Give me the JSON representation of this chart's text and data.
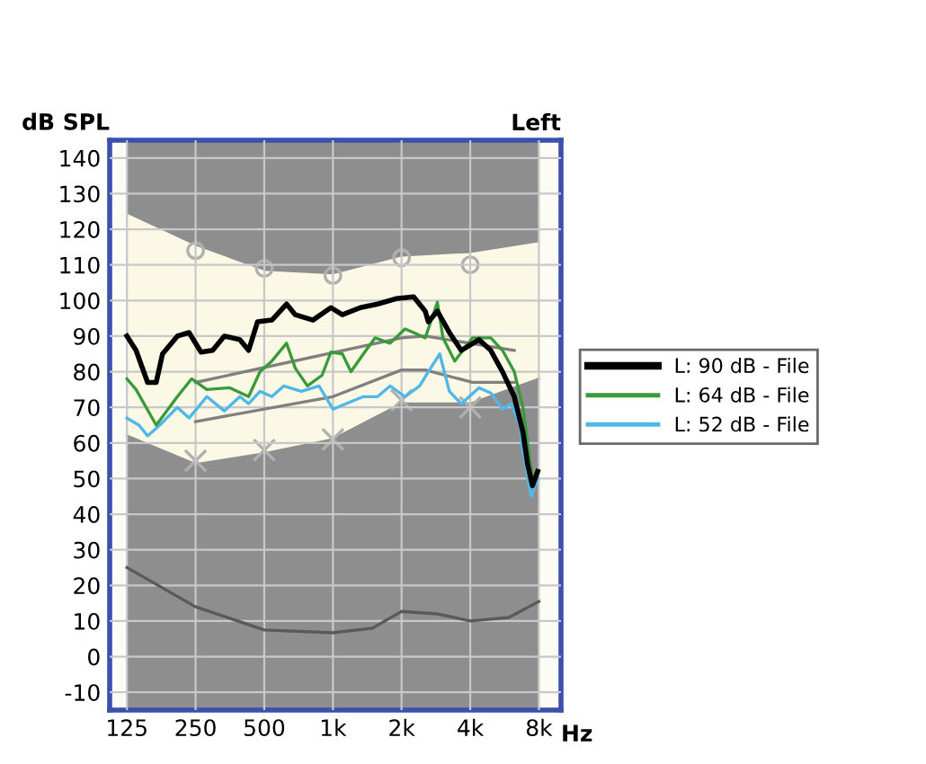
{
  "chart_data": {
    "type": "line",
    "title": "Left",
    "ylabel": "dB SPL",
    "xlabel": "Hz",
    "log": "x",
    "xlim": [
      105,
      10000
    ],
    "xticks": [
      {
        "value": 125,
        "label": "125"
      },
      {
        "value": 250,
        "label": "250"
      },
      {
        "value": 500,
        "label": "500"
      },
      {
        "value": 1000,
        "label": "1k"
      },
      {
        "value": 2000,
        "label": "2k"
      },
      {
        "value": 4000,
        "label": "4k"
      },
      {
        "value": 8000,
        "label": "8k"
      }
    ],
    "ylim": [
      -15,
      145
    ],
    "yticks": [
      -10,
      0,
      10,
      20,
      30,
      40,
      50,
      60,
      70,
      80,
      90,
      100,
      110,
      120,
      130,
      140
    ],
    "grid": true,
    "legend": "right",
    "bands": [
      {
        "axis": "x",
        "from": 125,
        "to": 8000,
        "color": "#8e8e8e"
      }
    ],
    "series": [
      {
        "type": "area",
        "color": "#fbf8e6",
        "x": [
          125,
          250,
          500,
          1000,
          2000,
          4000,
          8000
        ],
        "values": [
          124,
          115,
          108,
          107,
          112,
          113,
          116
        ]
      },
      {
        "type": "area",
        "color": "#8e8e8e",
        "x": [
          125,
          250,
          500,
          1000,
          2000,
          4000,
          8000
        ],
        "values": [
          62,
          54,
          57,
          61,
          71,
          71,
          78
        ]
      },
      {
        "color": "#5a5a5a",
        "x": [
          125,
          250,
          500,
          1000,
          1490,
          2000,
          2880,
          4000,
          5900,
          8000
        ],
        "values": [
          25,
          14,
          7.5,
          6.7,
          8,
          12.7,
          12,
          10,
          11,
          15.5
        ]
      },
      {
        "color": "#808080",
        "x": [
          250,
          2000,
          2540,
          6240
        ],
        "values": [
          77,
          89.5,
          90,
          86
        ]
      },
      {
        "color": "#808080",
        "x": [
          250,
          1000,
          2000,
          2540,
          4090,
          6240
        ],
        "values": [
          66,
          73,
          80.5,
          80.5,
          77,
          77
        ]
      },
      {
        "type": "scatter",
        "marker": "cross",
        "color": "#b0b0b0",
        "x": [
          250,
          500,
          1000,
          2000,
          4000
        ],
        "values": [
          55,
          58,
          61,
          72,
          70
        ]
      },
      {
        "type": "scatter",
        "marker": "circle",
        "color": "#b0b0b0",
        "x": [
          250,
          500,
          1000,
          2000,
          4000
        ],
        "values": [
          114,
          109,
          107,
          112,
          110
        ]
      },
      {
        "name": "L: 52 dB - File",
        "color": "#4fb8e8",
        "x": [
          125,
          141,
          154,
          174,
          208,
          234,
          280,
          334,
          391,
          427,
          479,
          540,
          608,
          727,
          869,
          1000,
          1140,
          1360,
          1570,
          1780,
          2070,
          2400,
          2620,
          2940,
          3240,
          3650,
          4370,
          4920,
          5540,
          6030,
          6600,
          6800,
          7400,
          7900
        ],
        "values": [
          67,
          65,
          62,
          65,
          70,
          67,
          73,
          69,
          73,
          71,
          74.5,
          73,
          76,
          74.5,
          76,
          69.5,
          71,
          73,
          73,
          76,
          73,
          76,
          80,
          85,
          74.5,
          71,
          75.5,
          74,
          69.5,
          71,
          65,
          58,
          45,
          50
        ]
      },
      {
        "name": "L: 64 dB - File",
        "color": "#3a9a3a",
        "x": [
          125,
          137,
          168,
          208,
          240,
          280,
          353,
          427,
          479,
          540,
          626,
          684,
          773,
          896,
          980,
          1100,
          1200,
          1360,
          1530,
          1780,
          2070,
          2260,
          2540,
          2870,
          3040,
          3420,
          4090,
          4920,
          5540,
          6240,
          6810,
          7200,
          7500
        ],
        "values": [
          78,
          75,
          65,
          73,
          78,
          75,
          75.5,
          73,
          80,
          83,
          88,
          81,
          76,
          79,
          85.5,
          85,
          80,
          85,
          89.5,
          88,
          92,
          91,
          89.5,
          99.5,
          89.5,
          83,
          89.5,
          89.5,
          86,
          80,
          70,
          58,
          50
        ]
      },
      {
        "name": "L: 90 dB - File",
        "color": "#000000",
        "x": [
          125,
          137,
          154,
          168,
          179,
          208,
          234,
          264,
          297,
          334,
          391,
          427,
          467,
          540,
          626,
          684,
          817,
          980,
          1100,
          1320,
          1570,
          1890,
          2260,
          2540,
          2620,
          2870,
          3240,
          3650,
          4370,
          4920,
          5540,
          6240,
          6810,
          7140,
          7500,
          7900
        ],
        "values": [
          90,
          86,
          77,
          77,
          85,
          90,
          91,
          85.5,
          86,
          90,
          89,
          86,
          94,
          94.5,
          99,
          96,
          94.5,
          98,
          96,
          98,
          99,
          100.5,
          101,
          97,
          94,
          97,
          91,
          86,
          89,
          86,
          80,
          73,
          63,
          54,
          48,
          52
        ]
      }
    ]
  }
}
